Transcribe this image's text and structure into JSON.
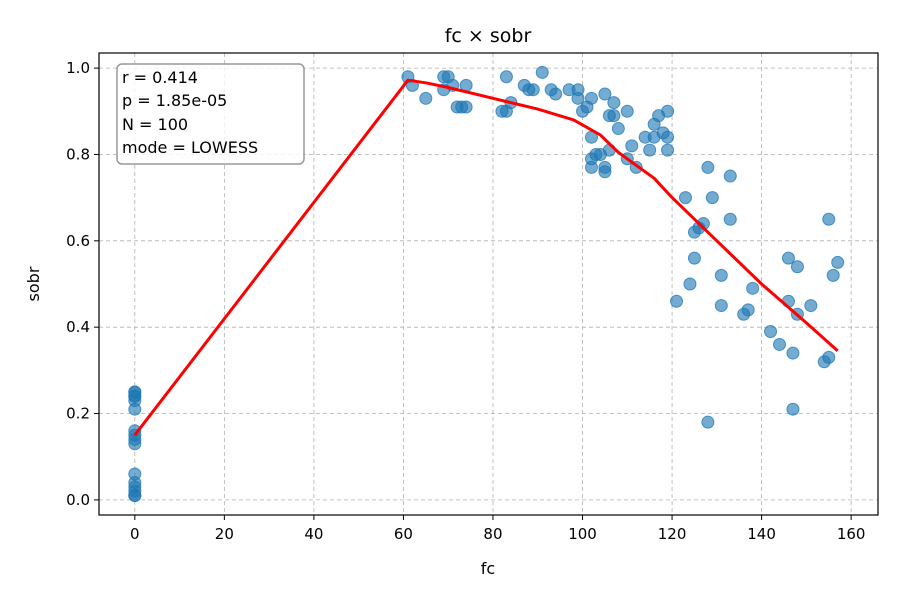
{
  "chart_data": {
    "type": "scatter",
    "title": "fc × sobr",
    "xlabel": "fc",
    "ylabel": "sobr",
    "xlim": [
      -8,
      166
    ],
    "ylim": [
      -0.035,
      1.035
    ],
    "xticks": [
      0,
      20,
      40,
      60,
      80,
      100,
      120,
      140,
      160
    ],
    "yticks": [
      0.0,
      0.2,
      0.4,
      0.6,
      0.8,
      1.0
    ],
    "ytick_labels": [
      "0.0",
      "0.2",
      "0.4",
      "0.6",
      "0.8",
      "1.0"
    ],
    "grid": true,
    "point_color": "#1f77b4",
    "trend_color": "#ff0000",
    "stats": [
      "r = 0.414",
      "p = 1.85e-05",
      "N = 100",
      "mode = LOWESS"
    ],
    "stats_position": "top-left",
    "points": [
      [
        0,
        0.25
      ],
      [
        0,
        0.24
      ],
      [
        0,
        0.23
      ],
      [
        0,
        0.21
      ],
      [
        0,
        0.16
      ],
      [
        0,
        0.15
      ],
      [
        0,
        0.14
      ],
      [
        0,
        0.13
      ],
      [
        0,
        0.06
      ],
      [
        0,
        0.04
      ],
      [
        0,
        0.03
      ],
      [
        0,
        0.02
      ],
      [
        0,
        0.01
      ],
      [
        0,
        0.01
      ],
      [
        0,
        0.25
      ],
      [
        0,
        0.24
      ],
      [
        61,
        0.98
      ],
      [
        62,
        0.96
      ],
      [
        65,
        0.93
      ],
      [
        69,
        0.98
      ],
      [
        69,
        0.95
      ],
      [
        70,
        0.98
      ],
      [
        71,
        0.96
      ],
      [
        72,
        0.91
      ],
      [
        73,
        0.91
      ],
      [
        74,
        0.96
      ],
      [
        74,
        0.91
      ],
      [
        82,
        0.9
      ],
      [
        83,
        0.98
      ],
      [
        83,
        0.9
      ],
      [
        84,
        0.92
      ],
      [
        87,
        0.96
      ],
      [
        88,
        0.95
      ],
      [
        89,
        0.95
      ],
      [
        91,
        0.99
      ],
      [
        93,
        0.95
      ],
      [
        94,
        0.94
      ],
      [
        97,
        0.95
      ],
      [
        99,
        0.95
      ],
      [
        99,
        0.93
      ],
      [
        100,
        0.9
      ],
      [
        101,
        0.91
      ],
      [
        102,
        0.93
      ],
      [
        102,
        0.84
      ],
      [
        102,
        0.79
      ],
      [
        102,
        0.77
      ],
      [
        103,
        0.8
      ],
      [
        104,
        0.8
      ],
      [
        105,
        0.94
      ],
      [
        105,
        0.77
      ],
      [
        105,
        0.76
      ],
      [
        106,
        0.89
      ],
      [
        106,
        0.81
      ],
      [
        107,
        0.92
      ],
      [
        107,
        0.89
      ],
      [
        108,
        0.86
      ],
      [
        110,
        0.9
      ],
      [
        110,
        0.79
      ],
      [
        111,
        0.82
      ],
      [
        112,
        0.77
      ],
      [
        114,
        0.84
      ],
      [
        115,
        0.81
      ],
      [
        116,
        0.84
      ],
      [
        116,
        0.87
      ],
      [
        117,
        0.89
      ],
      [
        119,
        0.9
      ],
      [
        119,
        0.84
      ],
      [
        119,
        0.81
      ],
      [
        121,
        0.46
      ],
      [
        123,
        0.7
      ],
      [
        124,
        0.5
      ],
      [
        125,
        0.62
      ],
      [
        125,
        0.56
      ],
      [
        126,
        0.63
      ],
      [
        128,
        0.77
      ],
      [
        128,
        0.18
      ],
      [
        129,
        0.7
      ],
      [
        131,
        0.52
      ],
      [
        131,
        0.45
      ],
      [
        133,
        0.75
      ],
      [
        133,
        0.65
      ],
      [
        136,
        0.43
      ],
      [
        137,
        0.44
      ],
      [
        138,
        0.49
      ],
      [
        142,
        0.39
      ],
      [
        144,
        0.36
      ],
      [
        146,
        0.56
      ],
      [
        146,
        0.46
      ],
      [
        147,
        0.34
      ],
      [
        147,
        0.21
      ],
      [
        148,
        0.54
      ],
      [
        148,
        0.43
      ],
      [
        151,
        0.45
      ],
      [
        154,
        0.32
      ],
      [
        155,
        0.33
      ],
      [
        155,
        0.65
      ],
      [
        156,
        0.52
      ],
      [
        157,
        0.55
      ],
      [
        127,
        0.64
      ],
      [
        118,
        0.85
      ]
    ],
    "trend": [
      [
        0,
        0.15
      ],
      [
        61,
        0.972
      ],
      [
        65,
        0.966
      ],
      [
        70,
        0.955
      ],
      [
        80,
        0.93
      ],
      [
        90,
        0.905
      ],
      [
        98,
        0.88
      ],
      [
        104,
        0.845
      ],
      [
        108,
        0.805
      ],
      [
        112,
        0.775
      ],
      [
        116,
        0.745
      ],
      [
        120,
        0.7
      ],
      [
        130,
        0.6
      ],
      [
        140,
        0.5
      ],
      [
        150,
        0.41
      ],
      [
        157,
        0.345
      ]
    ]
  }
}
